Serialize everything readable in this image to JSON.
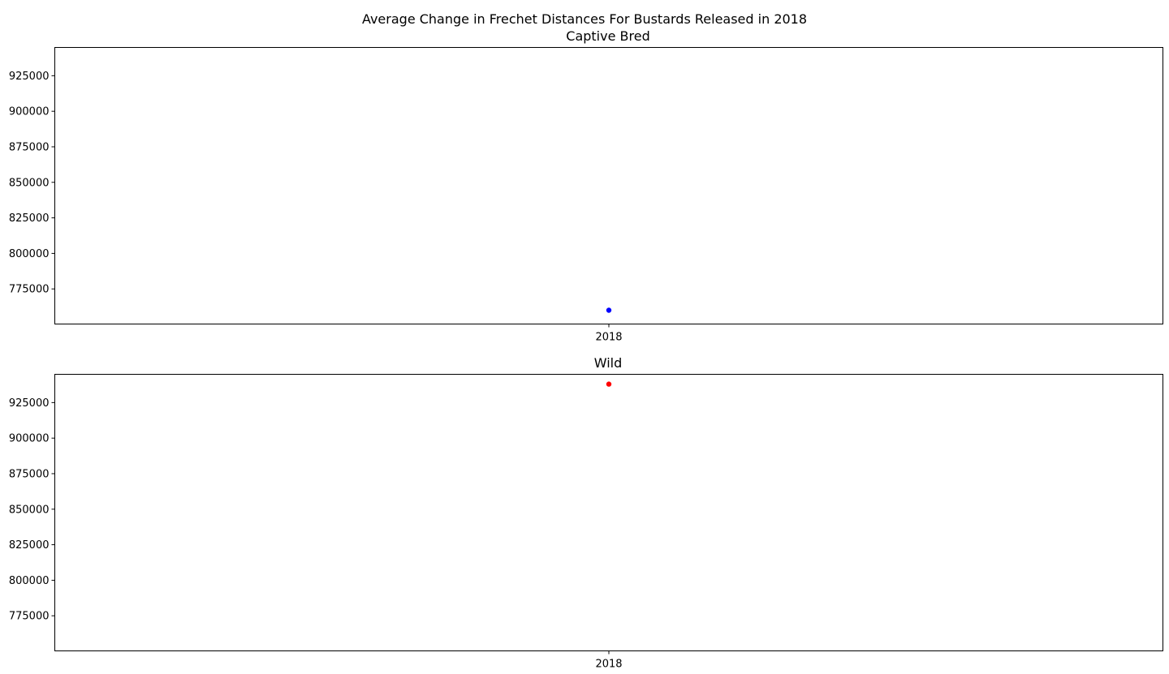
{
  "figure": {
    "suptitle": "Average Change in Frechet Distances For Bustards Released in 2018"
  },
  "chart_data": [
    {
      "type": "scatter",
      "title": "Captive Bred",
      "xlabel": "",
      "ylabel": "",
      "categories": [
        "2018"
      ],
      "series": [
        {
          "values": [
            760000
          ],
          "color": "#0000ff"
        }
      ],
      "ylim": [
        750300,
        944900
      ],
      "yticks": [
        775000,
        800000,
        825000,
        850000,
        875000,
        900000,
        925000
      ],
      "grid": false,
      "legend": "none"
    },
    {
      "type": "scatter",
      "title": "Wild",
      "xlabel": "",
      "ylabel": "",
      "categories": [
        "2018"
      ],
      "series": [
        {
          "values": [
            938000
          ],
          "color": "#ff0000"
        }
      ],
      "ylim": [
        750300,
        944900
      ],
      "yticks": [
        775000,
        800000,
        825000,
        850000,
        875000,
        900000,
        925000
      ],
      "grid": false,
      "legend": "none"
    }
  ]
}
